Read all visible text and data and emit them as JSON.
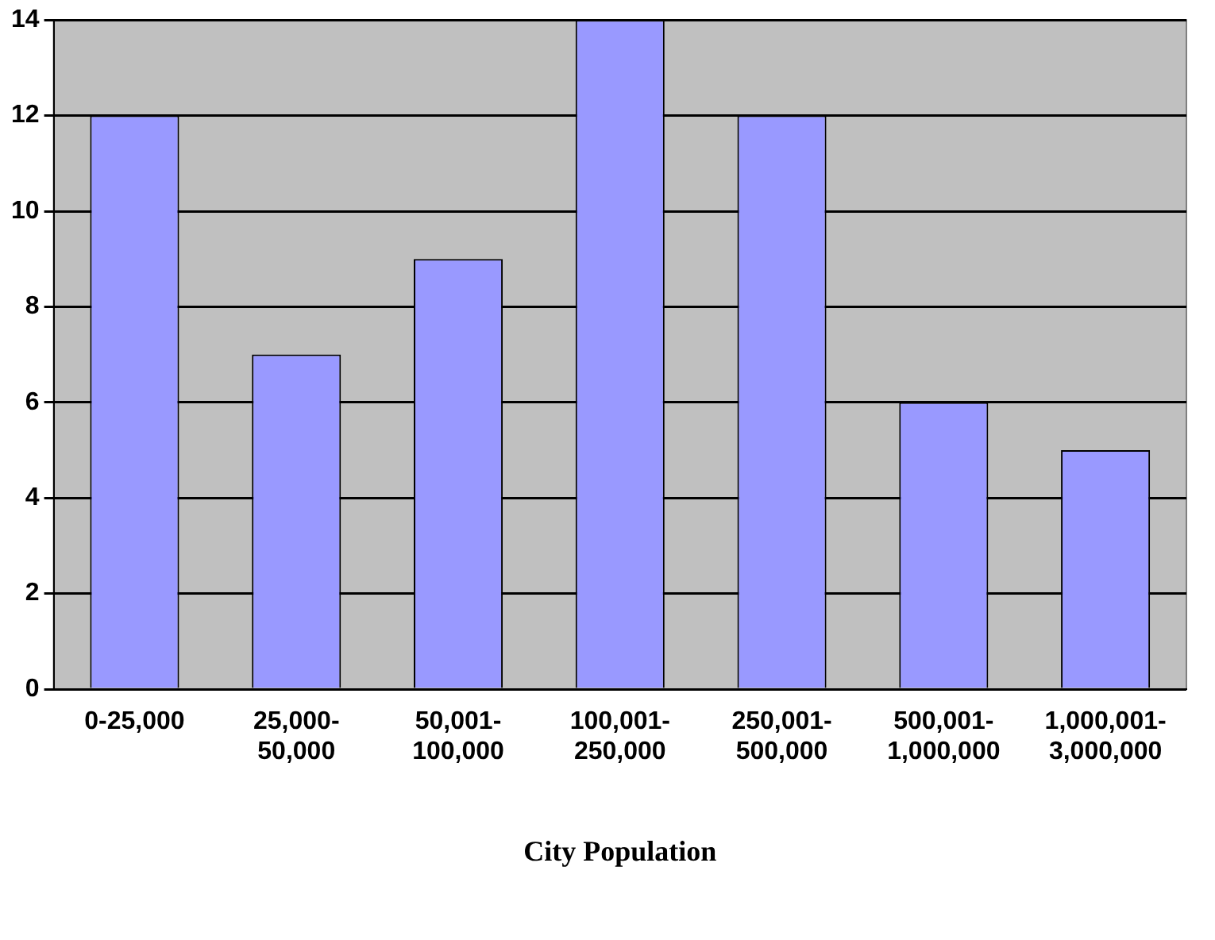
{
  "chart_data": {
    "type": "bar",
    "xlabel": "City Population",
    "categories": [
      "0-25,000",
      "25,000-50,000",
      "50,001-100,000",
      "100,001-250,000",
      "250,001-500,000",
      "500,001-1,000,000",
      "1,000,001-3,000,000"
    ],
    "values": [
      12,
      7,
      9,
      14,
      12,
      6,
      5
    ],
    "color": "#9999ff",
    "ylim": [
      0,
      14
    ],
    "yticks": [
      0,
      2,
      4,
      6,
      8,
      10,
      12,
      14
    ],
    "grid": "y",
    "legend": false
  }
}
